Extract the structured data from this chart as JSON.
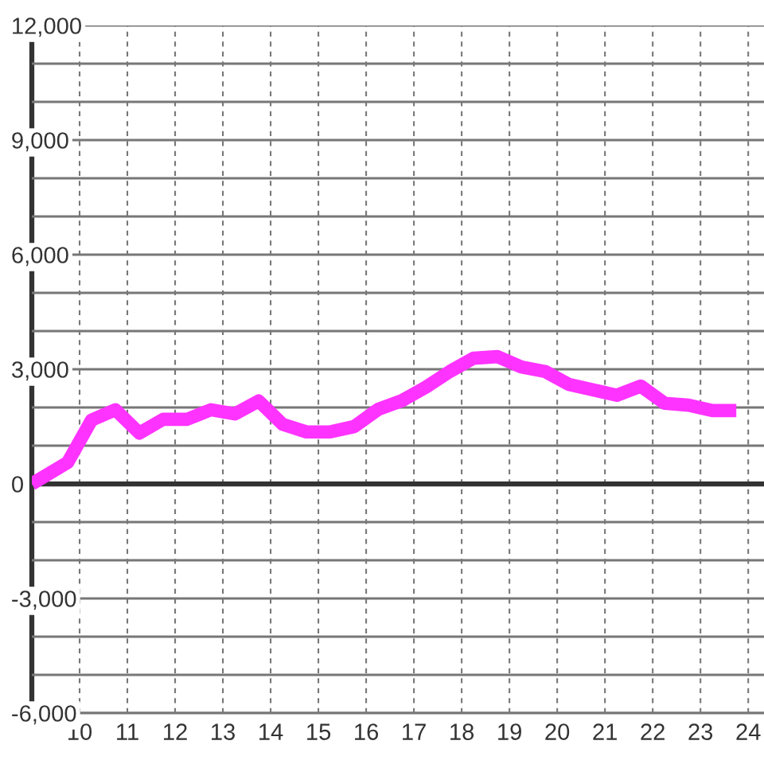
{
  "chart_data": {
    "type": "line",
    "x": [
      9.0,
      9.75,
      10.25,
      10.75,
      11.25,
      11.75,
      12.25,
      12.75,
      13.25,
      13.75,
      14.25,
      14.75,
      15.25,
      15.75,
      16.25,
      16.75,
      17.25,
      17.75,
      18.25,
      18.75,
      19.25,
      19.75,
      20.25,
      20.75,
      21.25,
      21.75,
      22.25,
      22.75,
      23.25,
      23.75
    ],
    "series": [
      {
        "color": "#ff33ff",
        "values": [
          0,
          560,
          1670,
          1940,
          1330,
          1690,
          1690,
          1940,
          1830,
          2170,
          1560,
          1360,
          1360,
          1500,
          1950,
          2180,
          2530,
          2940,
          3290,
          3330,
          3060,
          2940,
          2600,
          2460,
          2320,
          2560,
          2110,
          2060,
          1920,
          1920
        ]
      }
    ],
    "xlim": [
      9,
      24.33
    ],
    "xticks": [
      10,
      11,
      12,
      13,
      14,
      15,
      16,
      17,
      18,
      19,
      20,
      21,
      22,
      23,
      24
    ],
    "ylim": [
      -6000,
      12000
    ],
    "yticks": [
      {
        "value": -6000,
        "label": "-6,000"
      },
      {
        "value": -5000,
        "label": null
      },
      {
        "value": -4000,
        "label": null
      },
      {
        "value": -3000,
        "label": "-3,000"
      },
      {
        "value": -2000,
        "label": null
      },
      {
        "value": -1000,
        "label": null
      },
      0,
      {
        "value": 1000,
        "label": null
      },
      {
        "value": 2000,
        "label": null
      },
      {
        "value": 3000,
        "label": "3,000"
      },
      {
        "value": 4000,
        "label": null
      },
      {
        "value": 5000,
        "label": null
      },
      {
        "value": 6000,
        "label": "6,000"
      },
      {
        "value": 7000,
        "label": null
      },
      {
        "value": 8000,
        "label": null
      },
      {
        "value": 9000,
        "label": "9,000"
      },
      {
        "value": 10000,
        "label": null
      },
      {
        "value": 11000,
        "label": null
      },
      {
        "value": 12000,
        "label": "12,000"
      }
    ],
    "grid": true,
    "line_style": "solid",
    "ref_lines": [
      {
        "axis": "y",
        "value": 0,
        "color": "#333333"
      }
    ]
  }
}
